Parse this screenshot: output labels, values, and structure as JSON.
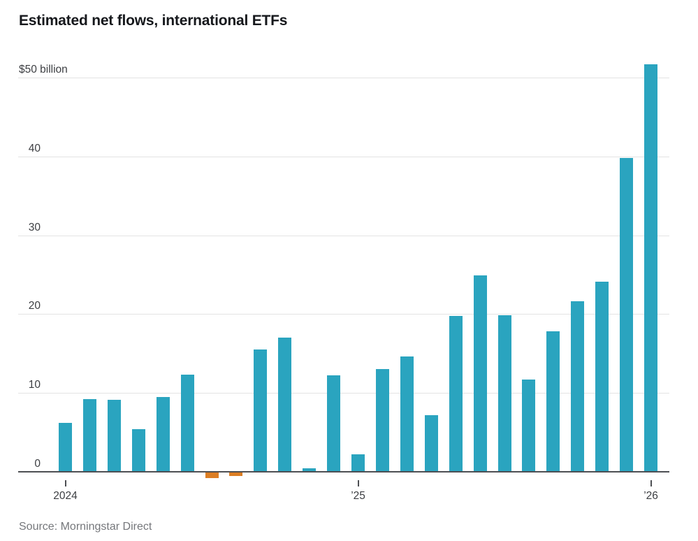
{
  "source": {
    "text": "Source: Morningstar Direct"
  },
  "chart_data": {
    "type": "bar",
    "title": "Estimated net flows, international ETFs",
    "xlabel": "",
    "ylabel": "$ billion",
    "unit": "billions of dollars",
    "grid": true,
    "legend": "none",
    "ylim": [
      -2,
      53
    ],
    "months": [
      "2024-01",
      "2024-02",
      "2024-03",
      "2024-04",
      "2024-05",
      "2024-06",
      "2024-07",
      "2024-08",
      "2024-09",
      "2024-10",
      "2024-11",
      "2024-12",
      "2025-01",
      "2025-02",
      "2025-03",
      "2025-04",
      "2025-05",
      "2025-06",
      "2025-07",
      "2025-08",
      "2025-09",
      "2025-10",
      "2025-11",
      "2025-12",
      "2026-01"
    ],
    "values": [
      6.2,
      9.2,
      9.1,
      5.4,
      9.5,
      12.3,
      -0.8,
      -0.5,
      15.5,
      17.0,
      0.4,
      12.2,
      2.2,
      13.0,
      14.6,
      7.2,
      19.8,
      24.9,
      19.9,
      11.7,
      17.8,
      21.6,
      24.1,
      39.8,
      51.7
    ],
    "colors": {
      "positive": "#2aa4bf",
      "negative": "#dc7e24"
    },
    "yticks": [
      {
        "value": 0,
        "label": "0"
      },
      {
        "value": 10,
        "label": "10"
      },
      {
        "value": 20,
        "label": "20"
      },
      {
        "value": 30,
        "label": "30"
      },
      {
        "value": 40,
        "label": "40"
      },
      {
        "value": 50,
        "label": "$50 billion"
      }
    ],
    "xticks": [
      {
        "month_index": 0,
        "label": "2024"
      },
      {
        "month_index": 12,
        "label": "’25"
      },
      {
        "month_index": 24,
        "label": "’26"
      }
    ]
  }
}
